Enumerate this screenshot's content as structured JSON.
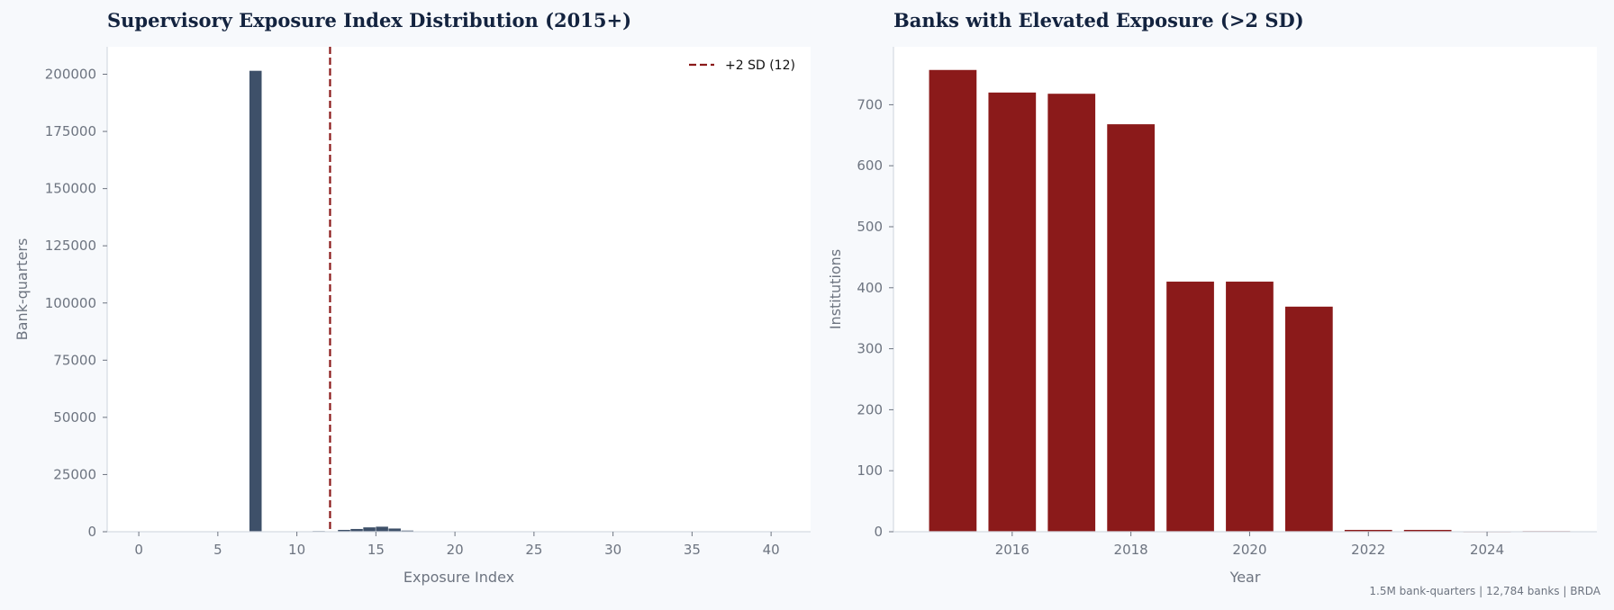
{
  "colors": {
    "hist_bar": "#3e5069",
    "elevated_bar": "#8b1a1a",
    "threshold_line": "#8b1a1a",
    "axis": "#d5dae2",
    "text_muted": "#6d7480",
    "title": "#13233f",
    "plot_bg": "#ffffff",
    "page_bg": "#f7f9fc"
  },
  "chart_data": [
    {
      "type": "bar",
      "subtype": "histogram",
      "title": "Supervisory Exposure Index Distribution (2015+)",
      "xlabel": "Exposure Index",
      "ylabel": "Bank-quarters",
      "xlim": [
        -2,
        42.5
      ],
      "ylim": [
        0,
        212000
      ],
      "xticks": [
        0,
        5,
        10,
        15,
        20,
        25,
        30,
        35,
        40
      ],
      "yticks": [
        0,
        25000,
        50000,
        75000,
        100000,
        125000,
        150000,
        175000,
        200000
      ],
      "bin_width": 0.8,
      "bins": [
        {
          "x": 7.0,
          "value": 201500
        },
        {
          "x": 10.2,
          "value": 200
        },
        {
          "x": 11.0,
          "value": 300
        },
        {
          "x": 12.6,
          "value": 800
        },
        {
          "x": 13.4,
          "value": 1200
        },
        {
          "x": 14.2,
          "value": 1900
        },
        {
          "x": 15.0,
          "value": 2200
        },
        {
          "x": 15.8,
          "value": 1400
        },
        {
          "x": 16.6,
          "value": 500
        },
        {
          "x": 17.4,
          "value": 150
        }
      ],
      "threshold": {
        "x": 12.1,
        "label": "+2 SD (12)"
      },
      "legend_position": "top-right",
      "grid": false
    },
    {
      "type": "bar",
      "title": "Banks with Elevated Exposure (>2 SD)",
      "xlabel": "Year",
      "ylabel": "Institutions",
      "xlim": [
        2014.0,
        2025.85
      ],
      "ylim": [
        0,
        795
      ],
      "xticks": [
        2016,
        2018,
        2020,
        2022,
        2024
      ],
      "yticks": [
        0,
        100,
        200,
        300,
        400,
        500,
        600,
        700
      ],
      "bar_width": 0.8,
      "categories": [
        2015,
        2016,
        2017,
        2018,
        2019,
        2020,
        2021,
        2022,
        2023,
        2024,
        2025
      ],
      "values": [
        757,
        720,
        718,
        668,
        410,
        410,
        369,
        3,
        3,
        0,
        1
      ],
      "grid": false
    }
  ],
  "footnote": "1.5M bank-quarters | 12,784 banks | BRDA"
}
